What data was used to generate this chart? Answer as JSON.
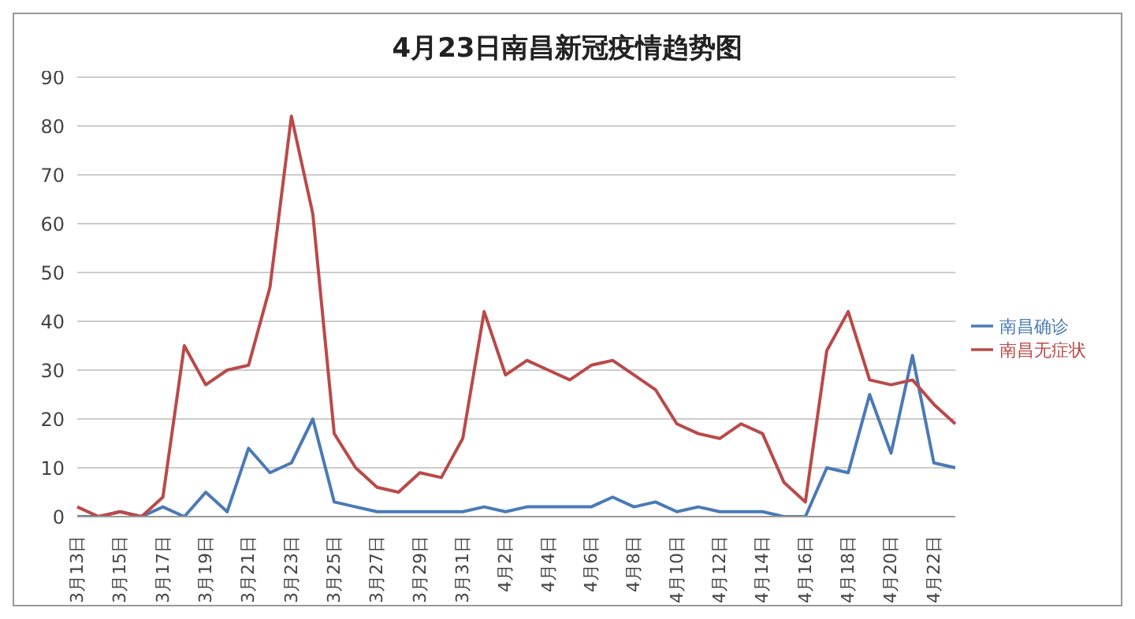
{
  "chart_data": {
    "type": "line",
    "title": "4月23日南昌新冠疫情趋势图",
    "categories": [
      "3月13日",
      null,
      "3月15日",
      null,
      "3月17日",
      null,
      "3月19日",
      null,
      "3月21日",
      null,
      "3月23日",
      null,
      "3月25日",
      null,
      "3月27日",
      null,
      "3月29日",
      null,
      "3月31日",
      null,
      "4月2日",
      null,
      "4月4日",
      null,
      "4月6日",
      null,
      "4月8日",
      null,
      "4月10日",
      null,
      "4月12日",
      null,
      "4月14日",
      null,
      "4月16日",
      null,
      "4月18日",
      null,
      "4月20日",
      null,
      "4月22日",
      null
    ],
    "series": [
      {
        "name": "南昌确诊",
        "color": "#4a7ab5",
        "values": [
          0,
          0,
          1,
          0,
          2,
          0,
          5,
          1,
          14,
          9,
          11,
          20,
          3,
          2,
          1,
          1,
          1,
          1,
          1,
          2,
          1,
          2,
          2,
          2,
          2,
          4,
          2,
          3,
          1,
          2,
          1,
          1,
          1,
          0,
          0,
          10,
          9,
          25,
          13,
          33,
          11,
          10
        ]
      },
      {
        "name": "南昌无症状",
        "color": "#b94a48",
        "values": [
          2,
          0,
          1,
          0,
          4,
          35,
          27,
          30,
          31,
          47,
          82,
          62,
          17,
          10,
          6,
          5,
          9,
          8,
          16,
          42,
          29,
          32,
          30,
          28,
          31,
          32,
          29,
          26,
          19,
          17,
          16,
          19,
          17,
          7,
          3,
          34,
          42,
          28,
          27,
          28,
          23,
          19
        ]
      }
    ],
    "ylim": [
      0,
      90
    ],
    "yticks": [
      0,
      10,
      20,
      30,
      40,
      50,
      60,
      70,
      80,
      90
    ],
    "grid": "y",
    "legend": "right",
    "marker": "none",
    "line_style": "solid"
  }
}
